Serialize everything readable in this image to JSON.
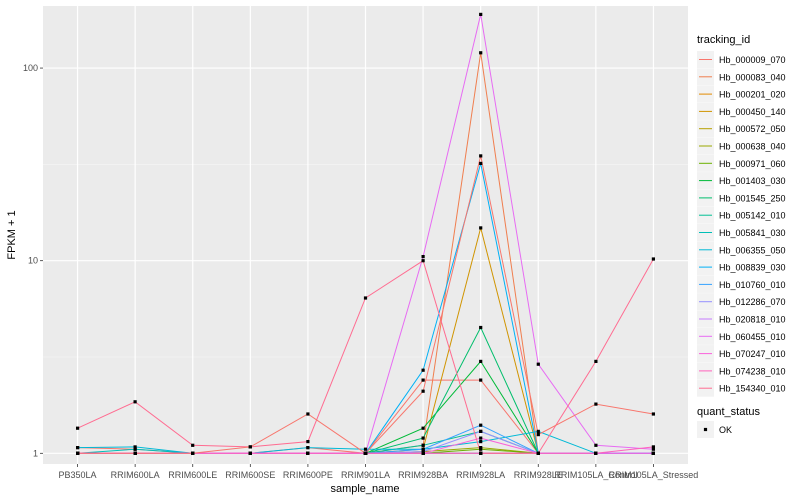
{
  "chart_data": {
    "type": "line",
    "title": "",
    "xlabel": "sample_name",
    "ylabel": "FPKM + 1",
    "y_scale": "log10",
    "ylim": [
      0.88,
      210
    ],
    "y_ticks": [
      1,
      10,
      100
    ],
    "y_tick_labels": [
      "1",
      "10",
      "100"
    ],
    "grid": true,
    "legend_position": "right",
    "categories": [
      "PB350LA",
      "RRIM600LA",
      "RRIM600LE",
      "RRIM600SE",
      "RRIM600PE",
      "RRIM901LA",
      "RRIM928BA",
      "RRIM928LA",
      "RRIM928LE",
      "RRIM105LA_Control",
      "RRIM105LA_Stressed"
    ],
    "legend_title": "tracking_id",
    "series": [
      {
        "name": "Hb_000009_070",
        "color": "#F8766D",
        "values": [
          1.07,
          1.05,
          1.0,
          1.0,
          1.07,
          1.0,
          2.4,
          2.4,
          1.0,
          1.0,
          1.0
        ]
      },
      {
        "name": "Hb_000083_040",
        "color": "#F07E4E",
        "values": [
          1.0,
          1.0,
          1.0,
          1.0,
          1.0,
          1.0,
          1.1,
          120,
          1.0,
          1.0,
          1.0
        ]
      },
      {
        "name": "Hb_000201_020",
        "color": "#E18A00",
        "values": [
          1.0,
          1.0,
          1.0,
          1.0,
          1.0,
          1.0,
          1.0,
          1.0,
          1.0,
          1.0,
          1.0
        ]
      },
      {
        "name": "Hb_000450_140",
        "color": "#D09400",
        "values": [
          1.0,
          1.0,
          1.0,
          1.0,
          1.0,
          1.0,
          1.05,
          14.8,
          1.0,
          1.0,
          1.0
        ]
      },
      {
        "name": "Hb_000572_050",
        "color": "#B79F00",
        "values": [
          1.0,
          1.0,
          1.0,
          1.0,
          1.0,
          1.0,
          1.0,
          1.0,
          1.0,
          1.0,
          1.0
        ]
      },
      {
        "name": "Hb_000638_040",
        "color": "#9AA800",
        "values": [
          1.0,
          1.0,
          1.0,
          1.0,
          1.0,
          1.0,
          1.02,
          1.07,
          1.0,
          1.0,
          1.0
        ]
      },
      {
        "name": "Hb_000971_060",
        "color": "#6BB100",
        "values": [
          1.0,
          1.0,
          1.0,
          1.0,
          1.0,
          1.0,
          1.0,
          1.05,
          1.0,
          1.0,
          1.0
        ]
      },
      {
        "name": "Hb_001403_030",
        "color": "#00BA38",
        "values": [
          1.0,
          1.0,
          1.0,
          1.0,
          1.0,
          1.0,
          1.35,
          3.0,
          1.0,
          1.0,
          1.0
        ]
      },
      {
        "name": "Hb_001545_250",
        "color": "#00BE6C",
        "values": [
          1.0,
          1.0,
          1.0,
          1.0,
          1.0,
          1.0,
          1.2,
          4.5,
          1.0,
          1.0,
          1.0
        ]
      },
      {
        "name": "Hb_005142_010",
        "color": "#00C094",
        "values": [
          1.0,
          1.0,
          1.0,
          1.0,
          1.0,
          1.0,
          1.1,
          1.3,
          1.0,
          1.0,
          1.0
        ]
      },
      {
        "name": "Hb_005841_030",
        "color": "#00BFB7",
        "values": [
          1.0,
          1.05,
          1.0,
          1.0,
          1.0,
          1.0,
          1.0,
          1.0,
          1.0,
          1.0,
          1.0
        ]
      },
      {
        "name": "Hb_006355_050",
        "color": "#00B9D6",
        "values": [
          1.07,
          1.08,
          1.0,
          1.0,
          1.07,
          1.05,
          1.05,
          1.15,
          1.3,
          1.0,
          1.0
        ]
      },
      {
        "name": "Hb_008839_030",
        "color": "#00B0F6",
        "values": [
          1.0,
          1.0,
          1.0,
          1.0,
          1.0,
          1.0,
          2.7,
          32,
          1.0,
          1.0,
          1.0
        ]
      },
      {
        "name": "Hb_010760_010",
        "color": "#35A2FF",
        "values": [
          1.0,
          1.0,
          1.0,
          1.0,
          1.0,
          1.0,
          1.05,
          1.4,
          1.0,
          1.0,
          1.0
        ]
      },
      {
        "name": "Hb_012286_070",
        "color": "#9590FF",
        "values": [
          1.0,
          1.0,
          1.0,
          1.0,
          1.0,
          1.0,
          1.02,
          1.3,
          1.0,
          1.0,
          1.0
        ]
      },
      {
        "name": "Hb_020818_010",
        "color": "#C77CFF",
        "values": [
          1.0,
          1.0,
          1.0,
          1.0,
          1.0,
          1.0,
          1.0,
          1.0,
          1.0,
          1.0,
          1.0
        ]
      },
      {
        "name": "Hb_060455_010",
        "color": "#E76BF3",
        "values": [
          1.0,
          1.0,
          1.0,
          1.0,
          1.0,
          1.0,
          10.5,
          190,
          2.9,
          1.1,
          1.05
        ]
      },
      {
        "name": "Hb_070247_010",
        "color": "#FA62DB",
        "values": [
          1.0,
          1.0,
          1.0,
          1.0,
          1.0,
          1.0,
          1.0,
          1.2,
          1.0,
          1.0,
          1.0
        ]
      },
      {
        "name": "Hb_074238_010",
        "color": "#FF62BC",
        "values": [
          1.0,
          1.0,
          1.0,
          1.0,
          1.0,
          1.0,
          1.0,
          1.0,
          1.0,
          1.0,
          1.08
        ]
      },
      {
        "name": "Hb_154340_010",
        "color": "#FF6C91",
        "values": [
          1.35,
          1.85,
          1.1,
          1.08,
          1.15,
          6.4,
          10.0,
          1.0,
          1.0,
          3.0,
          10.2
        ]
      },
      {
        "name": "",
        "color": "#F8766D",
        "values": [
          1.0,
          1.0,
          1.0,
          1.08,
          1.6,
          1.0,
          2.1,
          35,
          1.25,
          1.8,
          1.6
        ]
      }
    ],
    "shape_legend_title": "quant_status",
    "shape_legend_items": [
      "OK"
    ]
  }
}
